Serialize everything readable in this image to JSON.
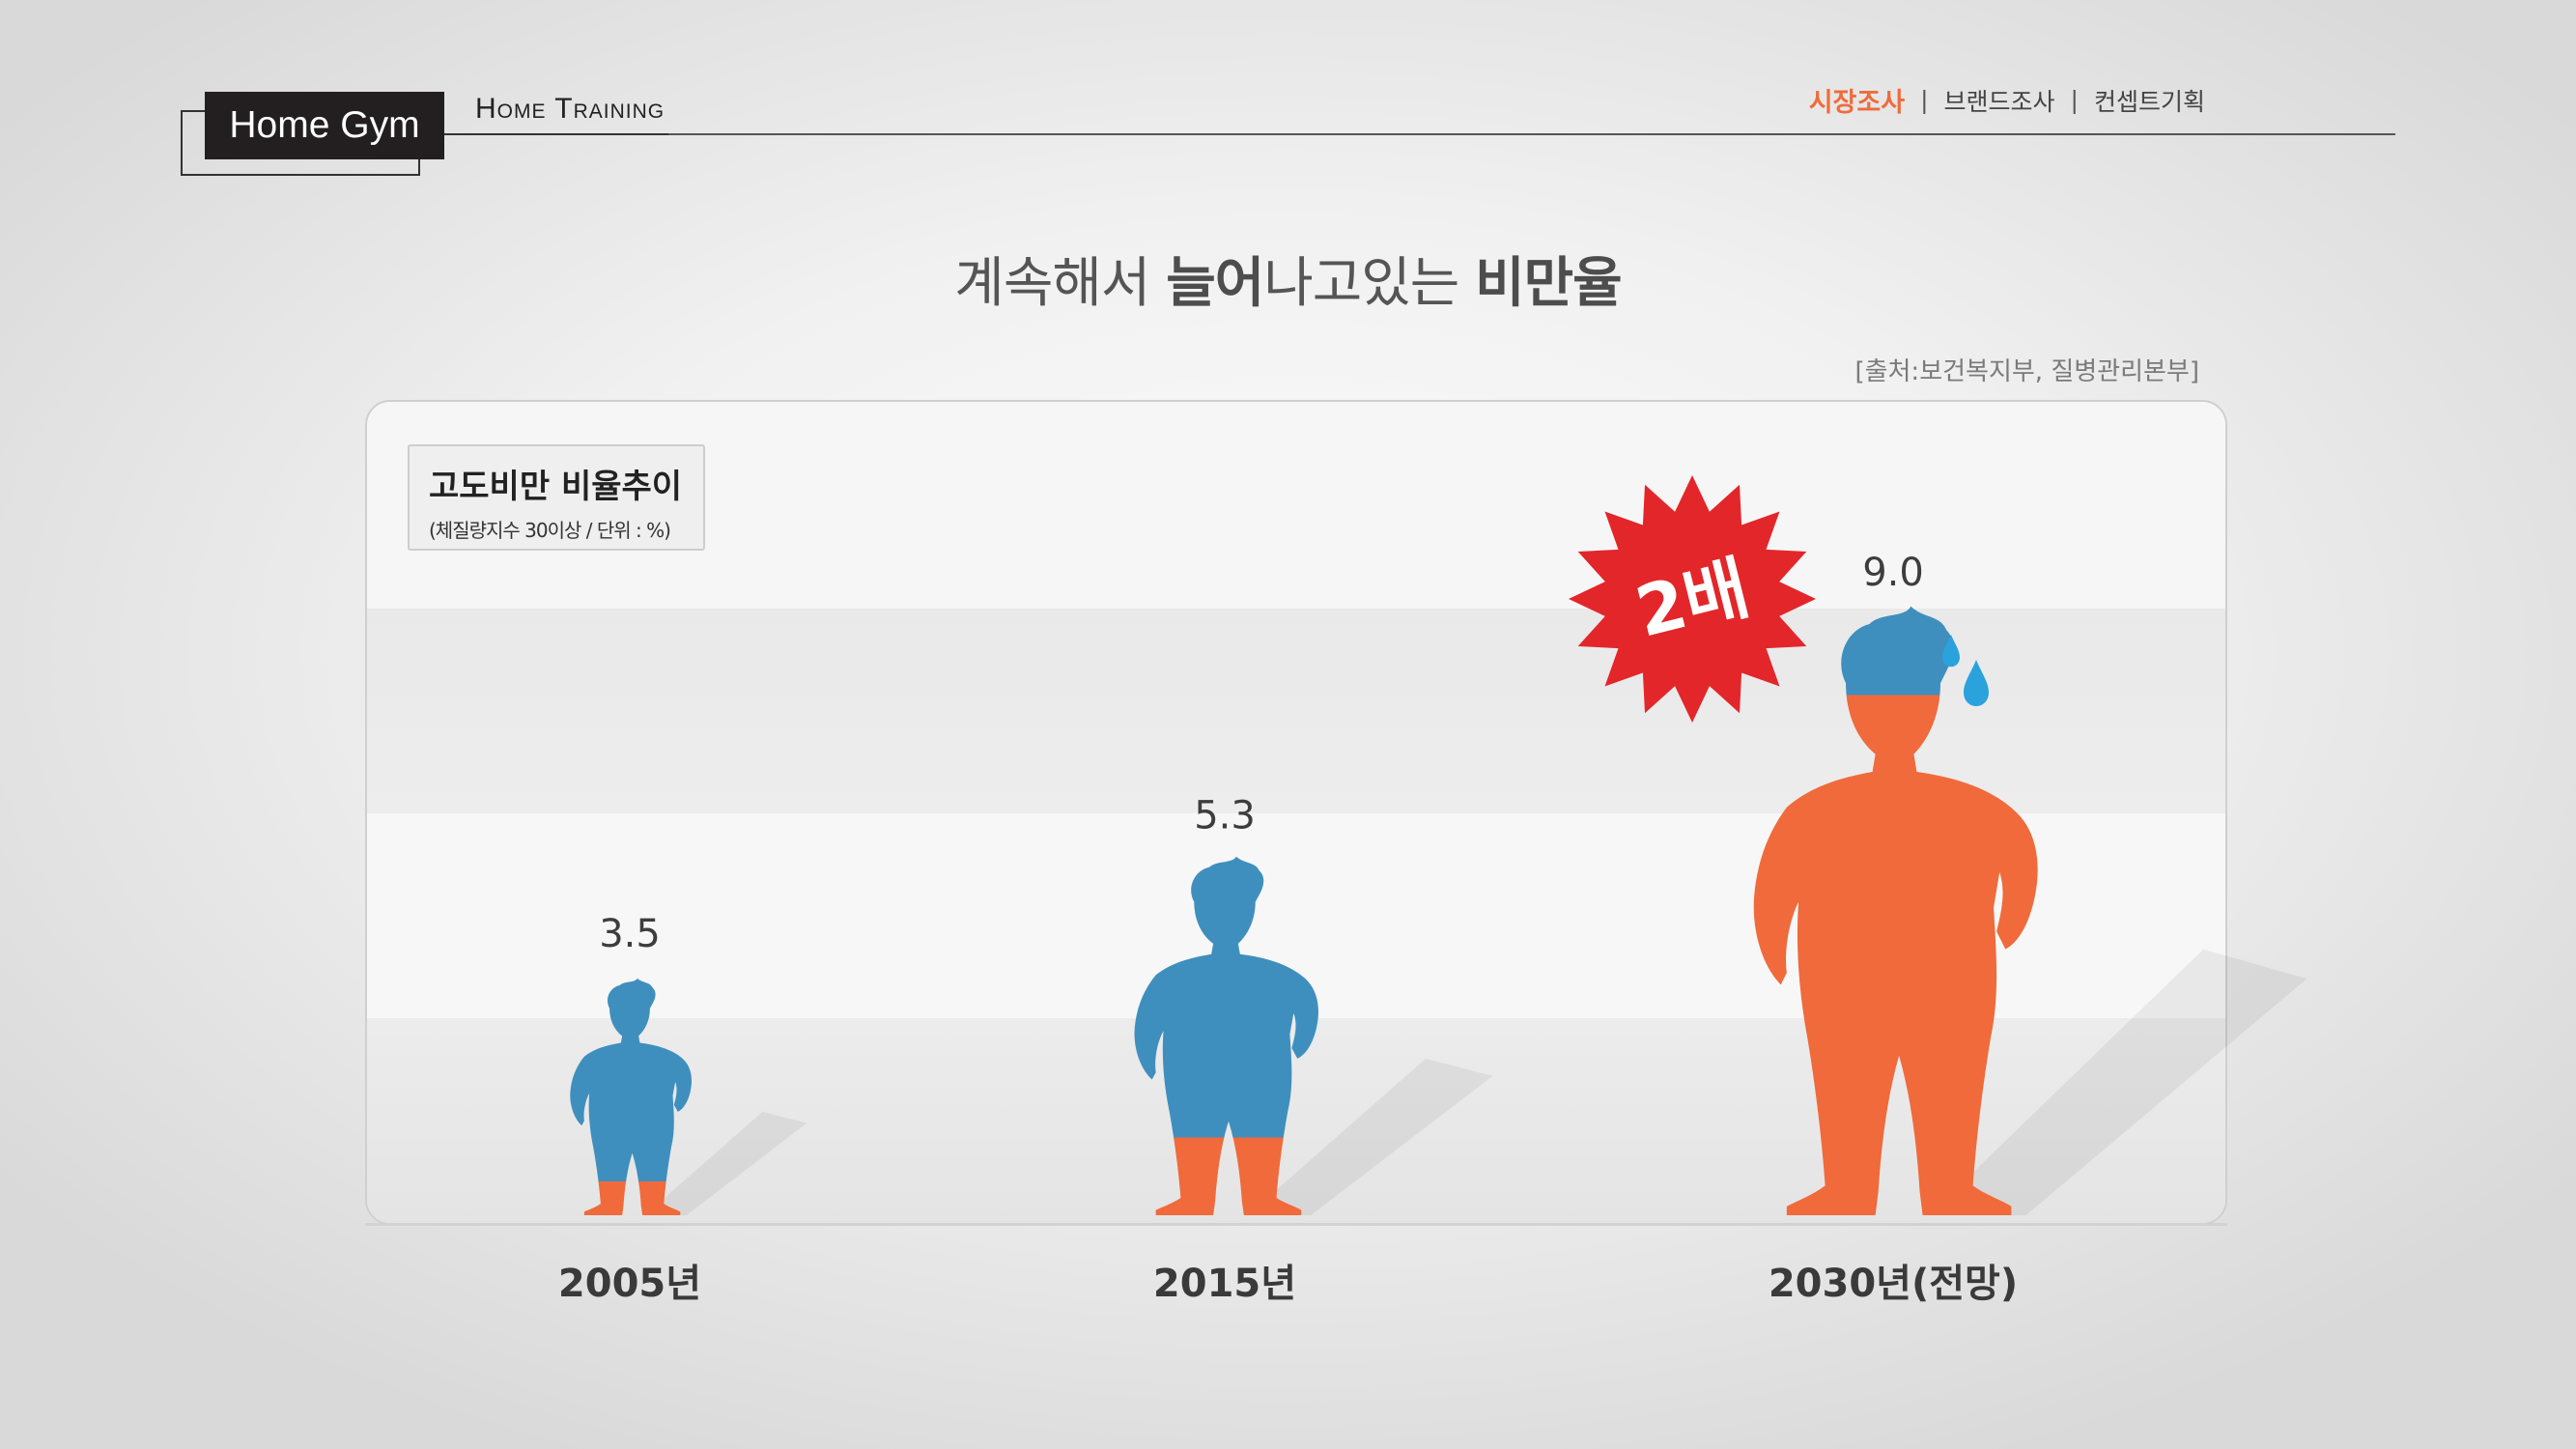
{
  "header": {
    "logo_text": "Home Gym",
    "subtitle": "Home Training",
    "nav": [
      {
        "label": "시장조사",
        "active": true
      },
      {
        "label": "브랜드조사",
        "active": false
      },
      {
        "label": "컨셉트기획",
        "active": false
      }
    ]
  },
  "title": {
    "part1": "계속해서 ",
    "part2": "늘어",
    "part3": "나고있는 ",
    "part4": "비만율"
  },
  "source": "[출처:보건복지부, 질병관리본부]",
  "legend": {
    "title": "고도비만 비율추이",
    "subtitle": "(체질량지수 30이상 / 단위 : %)"
  },
  "badge": "2배",
  "colors": {
    "blue": "#3f8fbe",
    "orange": "#f06a3b",
    "badge_red": "#e3262a",
    "drop_blue": "#2aa3dc"
  },
  "chart_data": {
    "type": "bar",
    "categories": [
      "2005년",
      "2015년",
      "2030년(전망)"
    ],
    "values": [
      3.5,
      5.3,
      9.0
    ],
    "value_labels": [
      "3.5",
      "5.3",
      "9.0"
    ],
    "ylabel": "",
    "legend": "top-left"
  }
}
